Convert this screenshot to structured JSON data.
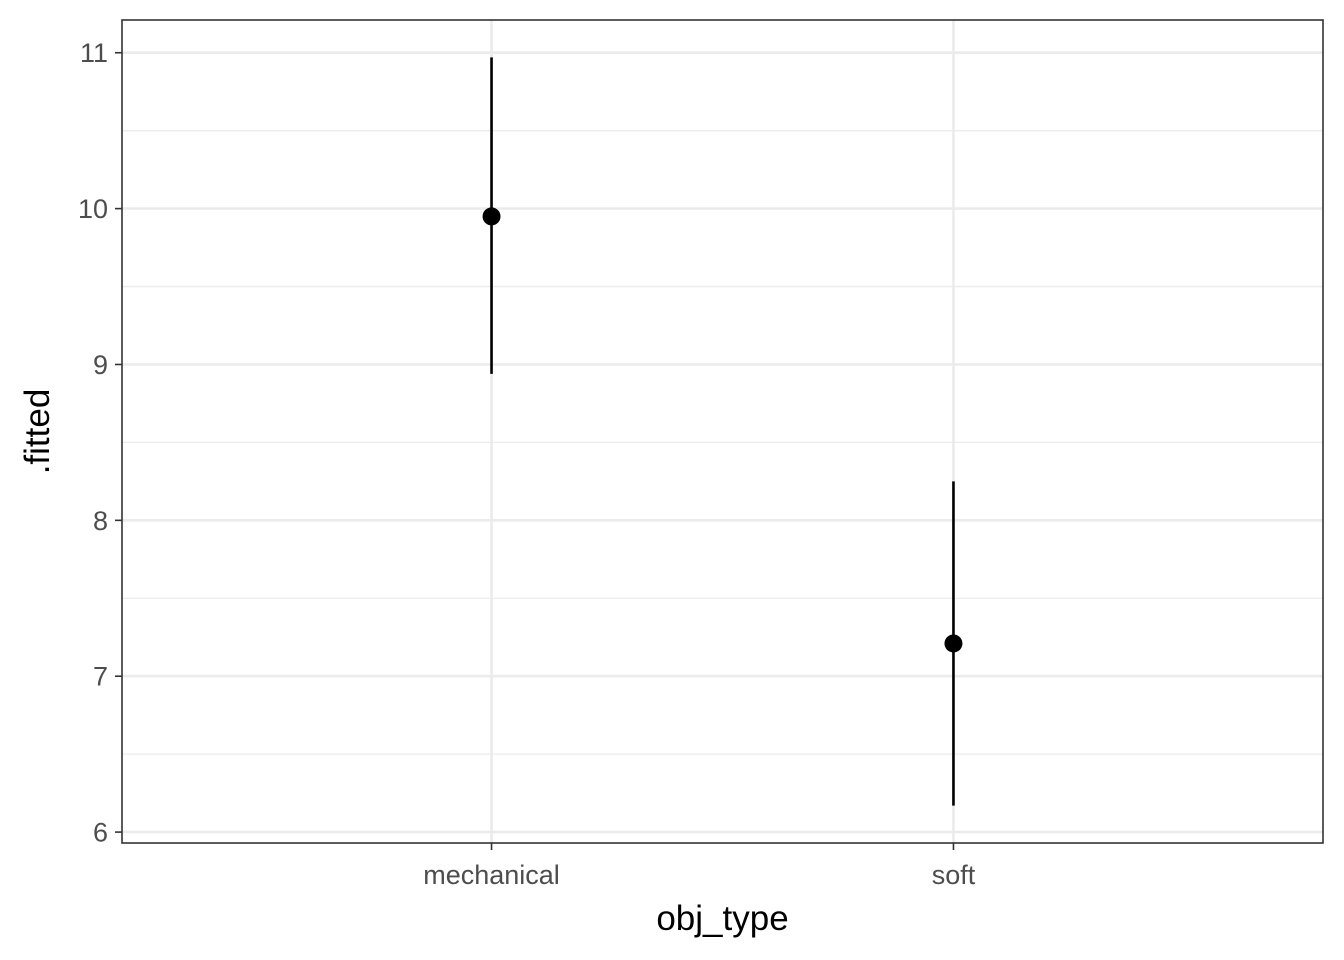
{
  "chart_data": {
    "type": "pointrange",
    "title": "",
    "xlabel": "obj_type",
    "ylabel": ".fitted",
    "categories": [
      "mechanical",
      "soft"
    ],
    "series": [
      {
        "values": [
          9.95,
          7.21
        ],
        "lower": [
          8.94,
          6.17
        ],
        "upper": [
          10.97,
          8.25
        ]
      }
    ],
    "ylim": [
      5.93,
      11.21
    ],
    "yticks": [
      6,
      7,
      8,
      9,
      10,
      11
    ],
    "grid": true,
    "legend": "none",
    "colors": {
      "points": "#000000",
      "grid": "#ebebeb",
      "border": "#333333",
      "ticklabel": "#4d4d4d"
    }
  }
}
